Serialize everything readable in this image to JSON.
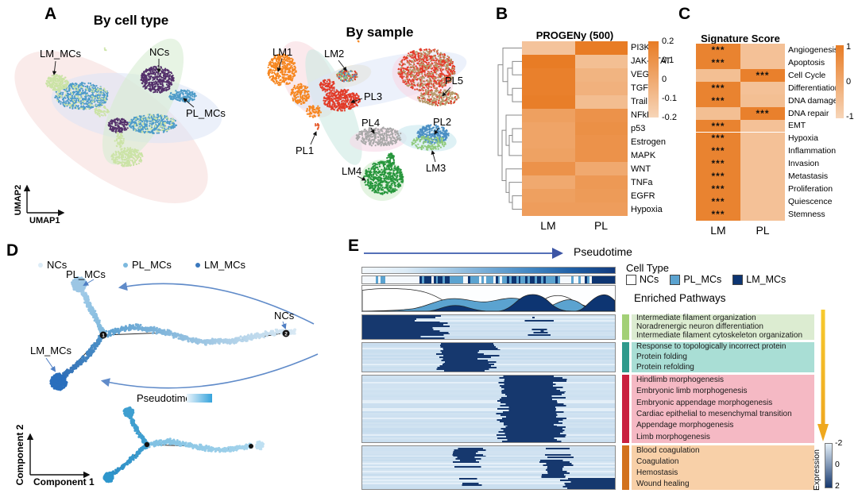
{
  "panel_a": {
    "label": "A",
    "by_cell_type": {
      "title": "By cell type",
      "x_axis": "UMAP1",
      "y_axis": "UMAP2",
      "clusters": [
        {
          "name": "NCs",
          "color": "#54306b"
        },
        {
          "name": "PL_MCs",
          "color": "#4d9bc8"
        },
        {
          "name": "LM_MCs",
          "color": "#cbe3a6"
        }
      ]
    },
    "by_sample": {
      "title": "By sample",
      "samples": [
        {
          "name": "LM1",
          "color": "#f6861f"
        },
        {
          "name": "LM2",
          "color": "#c49a61"
        },
        {
          "name": "PL3",
          "color": "#e23b28"
        },
        {
          "name": "PL5",
          "color": "#b59a6a"
        },
        {
          "name": "PL1",
          "color": "#e55b2d"
        },
        {
          "name": "PL4",
          "color": "#a8a8a8"
        },
        {
          "name": "PL2",
          "color": "#4b8fc4"
        },
        {
          "name": "LM3",
          "color": "#8fca7c"
        },
        {
          "name": "LM4",
          "color": "#27963c"
        }
      ]
    }
  },
  "panel_b": {
    "label": "B",
    "title": "PROGENy (500)",
    "columns": [
      "LM",
      "PL"
    ],
    "scale_ticks": [
      "0.2",
      "0.1",
      "0",
      "-0.1",
      "-0.2"
    ],
    "heatmap": {
      "type": "heatmap",
      "rows": [
        "PI3K",
        "JAK-STAT",
        "VEGF",
        "TGFb",
        "Trail",
        "NFkB",
        "p53",
        "Estrogen",
        "MAPK",
        "WNT",
        "TNFa",
        "EGFR",
        "Hypoxia"
      ],
      "values": [
        [
          -0.12,
          0.2
        ],
        [
          0.2,
          -0.1
        ],
        [
          0.18,
          -0.05
        ],
        [
          0.18,
          -0.04
        ],
        [
          0.19,
          -0.09
        ],
        [
          0.04,
          0.1
        ],
        [
          0.02,
          0.11
        ],
        [
          0.02,
          0.1
        ],
        [
          0.03,
          0.1
        ],
        [
          0.1,
          0.0
        ],
        [
          0.0,
          0.07
        ],
        [
          0.04,
          0.06
        ],
        [
          0.05,
          0.05
        ]
      ],
      "vmin": -0.2,
      "vmax": 0.2,
      "low_color": "#f7d5b8",
      "high_color": "#e87c25"
    }
  },
  "panel_c": {
    "label": "C",
    "title": "Signature Score",
    "columns": [
      "LM",
      "PL"
    ],
    "scale_ticks": [
      "1",
      "0",
      "-1"
    ],
    "significance_marker": "***",
    "heatmap": {
      "type": "heatmap",
      "rows": [
        "Angiogenesis",
        "Apoptosis",
        "Cell Cycle",
        "Differentiation",
        "DNA damage",
        "DNA repair",
        "EMT",
        "Hypoxia",
        "Inflammation",
        "Invasion",
        "Metastasis",
        "Proliferation",
        "Quiescence",
        "Stemness"
      ],
      "values": [
        [
          0.85,
          -0.55
        ],
        [
          0.85,
          -0.55
        ],
        [
          -0.5,
          0.9
        ],
        [
          0.85,
          -0.55
        ],
        [
          0.85,
          -0.5
        ],
        [
          -0.5,
          0.9
        ],
        [
          0.85,
          -0.55
        ],
        [
          0.85,
          -0.55
        ],
        [
          0.85,
          -0.55
        ],
        [
          0.85,
          -0.55
        ],
        [
          0.85,
          -0.55
        ],
        [
          0.85,
          -0.55
        ],
        [
          0.85,
          -0.55
        ],
        [
          0.85,
          -0.55
        ]
      ],
      "significance": [
        [
          "***",
          ""
        ],
        [
          "***",
          ""
        ],
        [
          "",
          "***"
        ],
        [
          "***",
          ""
        ],
        [
          "***",
          ""
        ],
        [
          "",
          "***"
        ],
        [
          "***",
          ""
        ],
        [
          "***",
          ""
        ],
        [
          "***",
          ""
        ],
        [
          "***",
          ""
        ],
        [
          "***",
          ""
        ],
        [
          "***",
          ""
        ],
        [
          "***",
          ""
        ],
        [
          "***",
          ""
        ]
      ],
      "vmin": -1,
      "vmax": 1,
      "low_color": "#f7d5b8",
      "high_color": "#e87c25"
    }
  },
  "panel_d": {
    "label": "D",
    "legend": [
      {
        "name": "NCs",
        "color": "#dcecf7"
      },
      {
        "name": "PL_MCs",
        "color": "#7cb9de"
      },
      {
        "name": "LM_MCs",
        "color": "#3a78bd"
      }
    ],
    "annotations": {
      "top_branch": "PL_MCs",
      "right_end": "NCs",
      "left_branch": "LM_MCs"
    },
    "node_labels": [
      "1",
      "2"
    ],
    "pseudotime_label": "Pseudotime",
    "pseudotime_gradient": [
      "#eaf4fb",
      "#35a3dc"
    ],
    "x_axis": "Component 1",
    "y_axis": "Component 2"
  },
  "panel_e": {
    "label": "E",
    "pseudotime_label": "Pseudotime",
    "cell_type_legend": {
      "title": "Cell Type",
      "items": [
        {
          "name": "NCs",
          "color": "#ffffff"
        },
        {
          "name": "PL_MCs",
          "color": "#5ba3d0"
        },
        {
          "name": "LM_MCs",
          "color": "#0d3572"
        }
      ]
    },
    "pathways_title": "Enriched Pathways",
    "heat": {
      "base": "#c6dcee",
      "light": "#e4eff8",
      "dark": "#16386e"
    },
    "pseudotime_gradient": [
      "#f3f8fc",
      "#dcebf6",
      "#aacde7",
      "#74abd6",
      "#4186c2",
      "#1f5fa5",
      "#123a7d"
    ],
    "celltype_bar": [
      {
        "to": 0.21,
        "w": [
          0.85,
          0.13,
          0.02
        ]
      },
      {
        "to": 0.33,
        "w": [
          0.15,
          0.45,
          0.4
        ]
      },
      {
        "to": 0.46,
        "w": [
          0.25,
          0.55,
          0.2
        ]
      },
      {
        "to": 0.55,
        "w": [
          0.45,
          0.45,
          0.1
        ]
      },
      {
        "to": 0.63,
        "w": [
          0.1,
          0.35,
          0.55
        ]
      },
      {
        "to": 0.72,
        "w": [
          0.02,
          0.18,
          0.8
        ]
      },
      {
        "to": 0.78,
        "w": [
          0.1,
          0.65,
          0.25
        ]
      },
      {
        "to": 0.88,
        "w": [
          0.75,
          0.2,
          0.05
        ]
      },
      {
        "to": 1.0,
        "w": [
          0.03,
          0.12,
          0.85
        ]
      }
    ],
    "pathway_groups": [
      {
        "bar_color": "#a3d077",
        "bg_color": "#dcecd1",
        "high_region": [
          0.0,
          0.27
        ],
        "pathways": [
          "Intermediate filament organization",
          "Noradrenergic neuron differentiation",
          "Intermediate filament cytoskeleton organization"
        ]
      },
      {
        "bar_color": "#2f9a8c",
        "bg_color": "#a9ded5",
        "high_region": [
          0.3,
          0.5
        ],
        "pathways": [
          "Response to topologically incorrect protein",
          "Protein folding",
          "Protein refolding"
        ]
      },
      {
        "bar_color": "#c9203f",
        "bg_color": "#f5b9c4",
        "high_region": [
          0.55,
          0.78
        ],
        "pathways": [
          "Hindlimb morphogenesis",
          "Embryonic limb morphogenesis",
          "Embryonic appendage morphogenesis",
          "Cardiac epithelial to mesenchymal transition",
          "Appendage morphogenesis",
          "Limb morphogenesis"
        ]
      },
      {
        "bar_color": "#d2711d",
        "bg_color": "#f8d0a8",
        "high_region": [
          0.72,
          1.0
        ],
        "pathways": [
          "Blood coagulation",
          "Coagulation",
          "Hemostasis",
          "Wound healing"
        ]
      }
    ],
    "expression_scale": {
      "label": "Expression",
      "ticks": [
        "-2",
        "0",
        "2"
      ]
    }
  }
}
